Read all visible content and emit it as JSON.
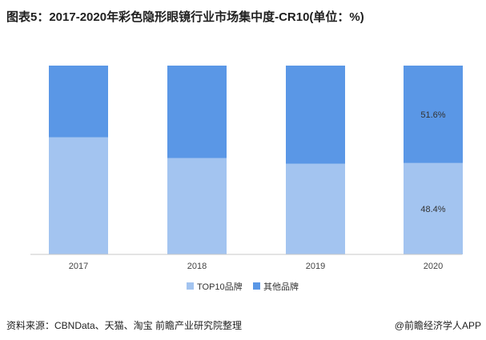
{
  "title": "图表5：2017-2020年彩色隐形眼镜行业市场集中度-CR10(单位：%)",
  "source": "资料来源：CBNData、天猫、淘宝 前瞻产业研究院整理",
  "credit": "@前瞻经济学人APP",
  "colors": {
    "top10": "#a3c4f0",
    "others": "#5a97e6",
    "axis": "#c8c8c8"
  },
  "chart_data": {
    "type": "bar",
    "stacked": true,
    "categories": [
      "2017",
      "2018",
      "2019",
      "2020"
    ],
    "series": [
      {
        "name": "TOP10品牌",
        "values": [
          62,
          51,
          48,
          48.4
        ]
      },
      {
        "name": "其他品牌",
        "values": [
          38,
          49,
          52,
          51.6
        ]
      }
    ],
    "data_labels": [
      {
        "category": "2020",
        "series": "TOP10品牌",
        "text": "48.4%"
      },
      {
        "category": "2020",
        "series": "其他品牌",
        "text": "51.6%"
      }
    ],
    "ylim": [
      0,
      100
    ],
    "grid": false,
    "legend_position": "bottom-center"
  }
}
